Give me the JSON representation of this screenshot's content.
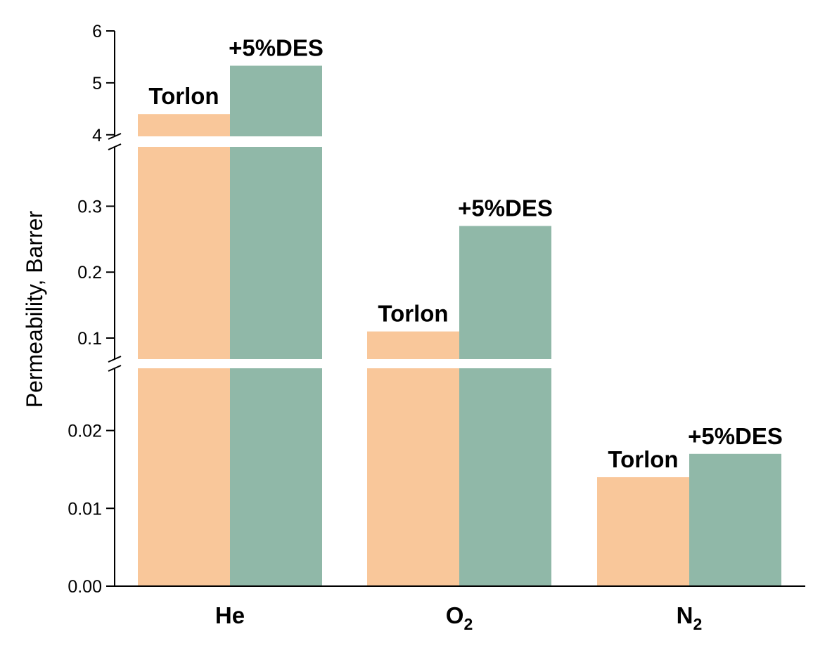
{
  "colors": {
    "torlon": "#f9c79a",
    "des": "#90b8a8"
  },
  "chart_data": {
    "type": "bar",
    "ylabel": "Permeability, Barrer",
    "categories": [
      {
        "base": "He",
        "sub": ""
      },
      {
        "base": "O",
        "sub": "2"
      },
      {
        "base": "N",
        "sub": "2"
      }
    ],
    "series": [
      {
        "name": "Torlon",
        "values": [
          4.4,
          0.11,
          0.014
        ]
      },
      {
        "name": "+5%DES",
        "values": [
          5.33,
          0.27,
          0.017
        ]
      }
    ],
    "y_axis_broken": true,
    "y_segments": [
      {
        "range": [
          0,
          0.028
        ],
        "ticks": [
          "0.00",
          "0.01",
          "0.02"
        ]
      },
      {
        "range": [
          0.068,
          0.39
        ],
        "ticks": [
          "0.1",
          "0.2",
          "0.3"
        ]
      },
      {
        "range": [
          3.97,
          6
        ],
        "ticks": [
          "4",
          "5",
          "6"
        ]
      }
    ]
  }
}
